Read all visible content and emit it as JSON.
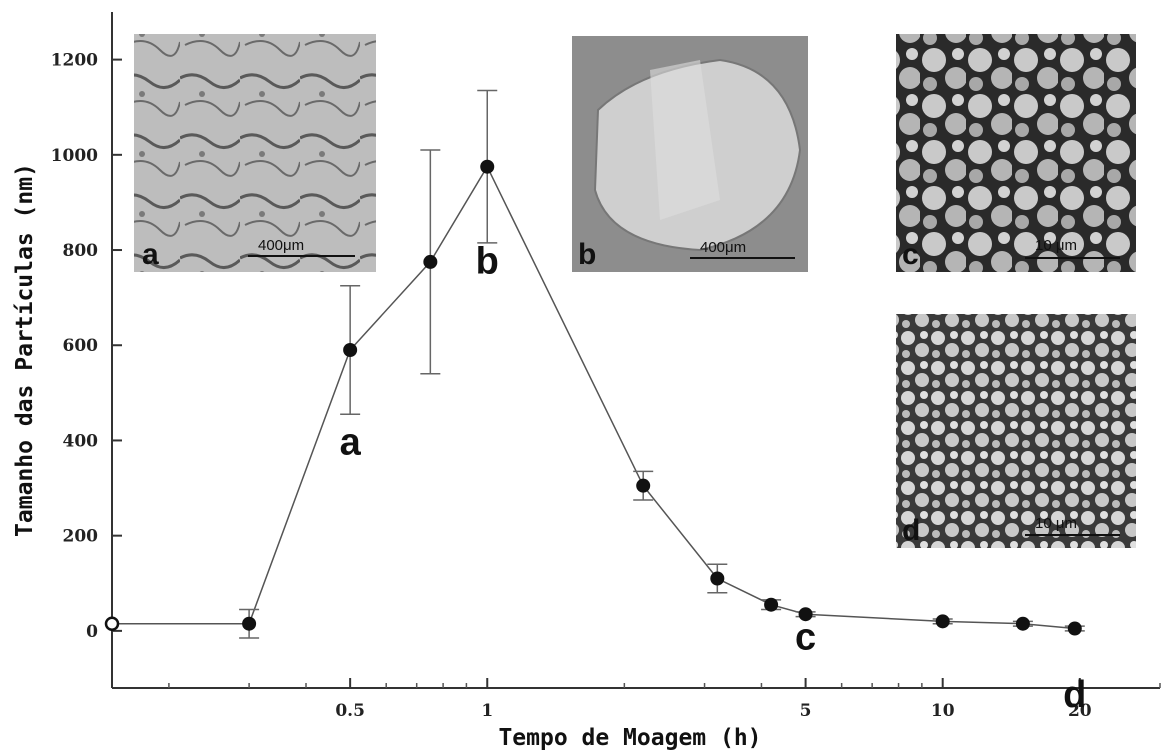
{
  "chart_data": {
    "type": "scatter",
    "connected": true,
    "title": "",
    "xlabel": "Tempo de Moagem (h)",
    "ylabel": "Tamanho das Partículas (nm)",
    "xscale": "log",
    "xlim": [
      0.15,
      30
    ],
    "ylim": [
      -120,
      1300
    ],
    "x_ticks": [
      0.5,
      1,
      5,
      10,
      20
    ],
    "x_tick_labels": [
      "0.5",
      "1",
      "5",
      "10",
      "20"
    ],
    "y_ticks": [
      0,
      200,
      400,
      600,
      800,
      1000,
      1200
    ],
    "y_tick_labels": [
      "0",
      "200",
      "400",
      "600",
      "800",
      "1000",
      "1200"
    ],
    "series": [
      {
        "points": [
          {
            "x": 0.15,
            "y": 15,
            "err": 0
          },
          {
            "x": 0.3,
            "y": 15,
            "err": 30
          },
          {
            "x": 0.5,
            "y": 590,
            "err": 135
          },
          {
            "x": 0.75,
            "y": 775,
            "err": 235
          },
          {
            "x": 1.0,
            "y": 975,
            "err": 160
          },
          {
            "x": 2.2,
            "y": 305,
            "err": 30
          },
          {
            "x": 3.2,
            "y": 110,
            "err": 30
          },
          {
            "x": 4.2,
            "y": 55,
            "err": 10
          },
          {
            "x": 5.0,
            "y": 35,
            "err": 5
          },
          {
            "x": 10.0,
            "y": 20,
            "err": 5
          },
          {
            "x": 15.0,
            "y": 15,
            "err": 5
          },
          {
            "x": 19.5,
            "y": 5,
            "err": 5
          }
        ]
      }
    ],
    "annotations": [
      {
        "text": "a",
        "x": 0.5,
        "y": 400
      },
      {
        "text": "b",
        "x": 1.0,
        "y": 780
      },
      {
        "text": "c",
        "x": 5.0,
        "y": -10
      },
      {
        "text": "d",
        "x": 19.5,
        "y": -130
      }
    ],
    "insets": [
      {
        "letter": "a",
        "scale_text": "400μm"
      },
      {
        "letter": "b",
        "scale_text": "400μm"
      },
      {
        "letter": "c",
        "scale_text": "10 μm"
      },
      {
        "letter": "d",
        "scale_text": "10 μm"
      }
    ]
  }
}
